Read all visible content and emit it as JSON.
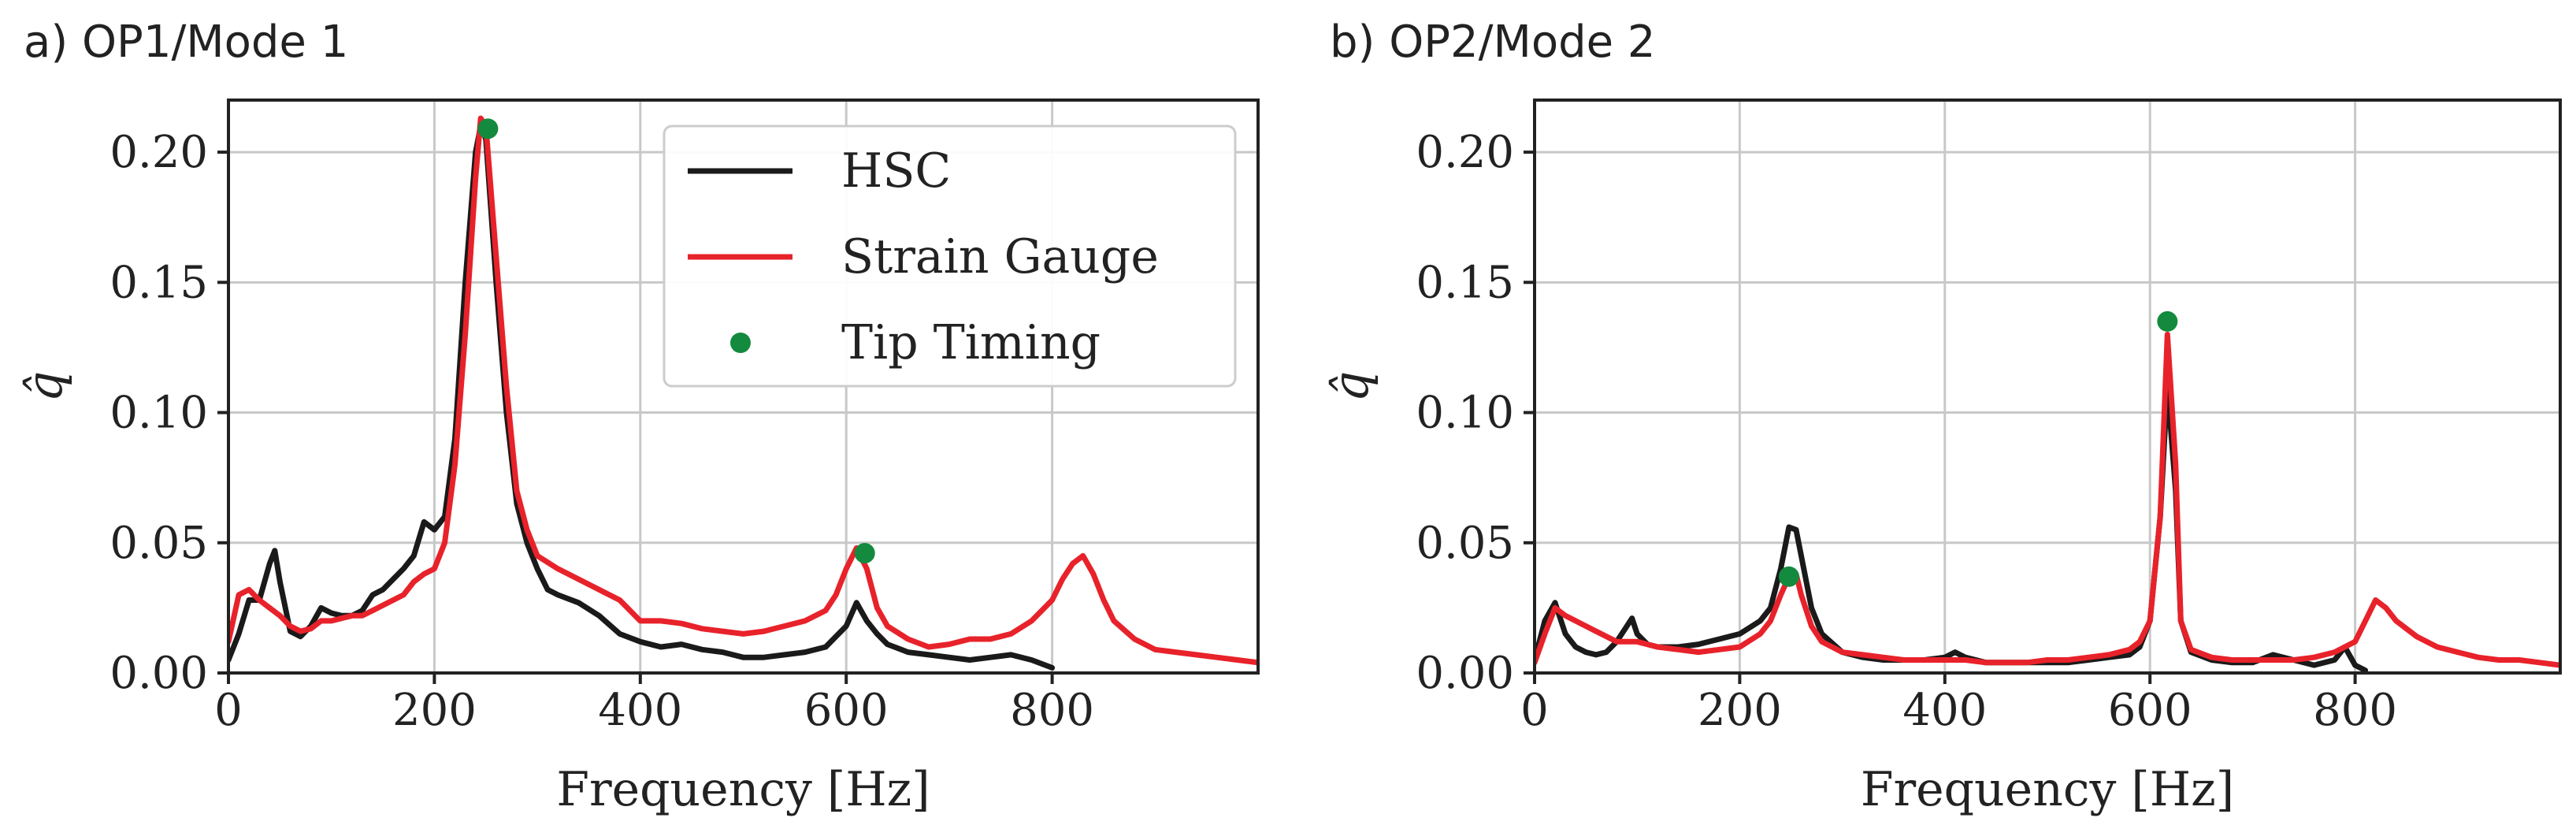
{
  "colors": {
    "hsc": "#1a1a1a",
    "strain_gauge": "#e8222a",
    "tip_timing": "#138a3e",
    "grid": "#c8c8c8",
    "axis": "#222222"
  },
  "chart_data": [
    {
      "panel": "a",
      "type": "line",
      "title": "a) OP1/Mode 1",
      "xlabel": "Frequency [Hz]",
      "ylabel": "q̂",
      "xlim": [
        0,
        1000
      ],
      "ylim": [
        0,
        0.22
      ],
      "xticks": [
        0,
        200,
        400,
        600,
        800
      ],
      "xtick_labels": [
        "0",
        "200",
        "400",
        "600",
        "800"
      ],
      "yticks": [
        0.0,
        0.05,
        0.1,
        0.15,
        0.2
      ],
      "ytick_labels": [
        "0.00",
        "0.05",
        "0.10",
        "0.15",
        "0.20"
      ],
      "grid": true,
      "legend": {
        "placement": "top-right",
        "entries": [
          "HSC",
          "Strain Gauge",
          "Tip Timing"
        ]
      },
      "series": [
        {
          "name": "HSC",
          "kind": "line",
          "x": [
            0,
            10,
            20,
            30,
            40,
            45,
            50,
            60,
            70,
            80,
            90,
            100,
            110,
            120,
            130,
            140,
            150,
            160,
            170,
            180,
            190,
            200,
            210,
            220,
            230,
            240,
            245,
            250,
            260,
            270,
            280,
            290,
            300,
            310,
            320,
            340,
            360,
            380,
            400,
            420,
            440,
            460,
            480,
            500,
            520,
            540,
            560,
            580,
            600,
            610,
            620,
            630,
            640,
            660,
            680,
            700,
            720,
            740,
            760,
            780,
            800
          ],
          "y": [
            0.005,
            0.015,
            0.028,
            0.028,
            0.042,
            0.047,
            0.035,
            0.016,
            0.014,
            0.018,
            0.025,
            0.023,
            0.022,
            0.022,
            0.024,
            0.03,
            0.032,
            0.036,
            0.04,
            0.045,
            0.058,
            0.055,
            0.06,
            0.09,
            0.15,
            0.2,
            0.21,
            0.205,
            0.15,
            0.1,
            0.065,
            0.05,
            0.04,
            0.032,
            0.03,
            0.027,
            0.022,
            0.015,
            0.012,
            0.01,
            0.011,
            0.009,
            0.008,
            0.006,
            0.006,
            0.007,
            0.008,
            0.01,
            0.018,
            0.027,
            0.02,
            0.015,
            0.011,
            0.008,
            0.007,
            0.006,
            0.005,
            0.006,
            0.007,
            0.005,
            0.002
          ]
        },
        {
          "name": "Strain Gauge",
          "kind": "line",
          "x": [
            0,
            10,
            20,
            30,
            40,
            50,
            60,
            70,
            80,
            90,
            100,
            110,
            120,
            130,
            140,
            150,
            160,
            170,
            180,
            190,
            200,
            210,
            220,
            230,
            240,
            245,
            250,
            260,
            270,
            280,
            290,
            300,
            320,
            340,
            360,
            380,
            400,
            420,
            440,
            460,
            480,
            500,
            520,
            540,
            560,
            580,
            590,
            600,
            610,
            620,
            630,
            640,
            660,
            680,
            700,
            720,
            740,
            760,
            780,
            800,
            810,
            820,
            830,
            840,
            850,
            860,
            880,
            900,
            920,
            940,
            960,
            980,
            1000
          ],
          "y": [
            0.012,
            0.03,
            0.032,
            0.028,
            0.025,
            0.022,
            0.018,
            0.016,
            0.017,
            0.02,
            0.02,
            0.021,
            0.022,
            0.022,
            0.024,
            0.026,
            0.028,
            0.03,
            0.035,
            0.038,
            0.04,
            0.05,
            0.08,
            0.13,
            0.19,
            0.213,
            0.21,
            0.16,
            0.11,
            0.07,
            0.055,
            0.045,
            0.04,
            0.036,
            0.032,
            0.028,
            0.02,
            0.02,
            0.019,
            0.017,
            0.016,
            0.015,
            0.016,
            0.018,
            0.02,
            0.024,
            0.03,
            0.04,
            0.048,
            0.04,
            0.025,
            0.018,
            0.013,
            0.01,
            0.011,
            0.013,
            0.013,
            0.015,
            0.02,
            0.028,
            0.036,
            0.042,
            0.045,
            0.038,
            0.028,
            0.02,
            0.013,
            0.009,
            0.008,
            0.007,
            0.006,
            0.005,
            0.004
          ]
        },
        {
          "name": "Tip Timing",
          "kind": "scatter",
          "x": [
            252,
            618
          ],
          "y": [
            0.209,
            0.046
          ]
        }
      ]
    },
    {
      "panel": "b",
      "type": "line",
      "title": "b) OP2/Mode 2",
      "xlabel": "Frequency [Hz]",
      "ylabel": "q̂",
      "xlim": [
        0,
        1000
      ],
      "ylim": [
        0,
        0.22
      ],
      "xticks": [
        0,
        200,
        400,
        600,
        800
      ],
      "xtick_labels": [
        "0",
        "200",
        "400",
        "600",
        "800"
      ],
      "yticks": [
        0.0,
        0.05,
        0.1,
        0.15,
        0.2
      ],
      "ytick_labels": [
        "0.00",
        "0.05",
        "0.10",
        "0.15",
        "0.20"
      ],
      "grid": true,
      "legend": null,
      "series": [
        {
          "name": "HSC",
          "kind": "line",
          "x": [
            0,
            10,
            20,
            30,
            40,
            50,
            60,
            70,
            80,
            90,
            95,
            100,
            110,
            120,
            140,
            160,
            180,
            200,
            220,
            230,
            240,
            248,
            255,
            260,
            270,
            280,
            300,
            320,
            340,
            360,
            380,
            400,
            410,
            420,
            440,
            460,
            480,
            500,
            520,
            540,
            560,
            580,
            590,
            600,
            610,
            617,
            625,
            630,
            640,
            660,
            680,
            700,
            720,
            740,
            760,
            780,
            790,
            800,
            810
          ],
          "y": [
            0.005,
            0.02,
            0.027,
            0.015,
            0.01,
            0.008,
            0.007,
            0.008,
            0.012,
            0.018,
            0.021,
            0.015,
            0.011,
            0.01,
            0.01,
            0.011,
            0.013,
            0.015,
            0.02,
            0.025,
            0.04,
            0.056,
            0.055,
            0.045,
            0.025,
            0.015,
            0.008,
            0.006,
            0.005,
            0.005,
            0.005,
            0.006,
            0.008,
            0.006,
            0.004,
            0.004,
            0.004,
            0.004,
            0.004,
            0.005,
            0.006,
            0.007,
            0.01,
            0.02,
            0.06,
            0.11,
            0.07,
            0.02,
            0.008,
            0.005,
            0.004,
            0.004,
            0.007,
            0.005,
            0.003,
            0.005,
            0.01,
            0.003,
            0.001
          ]
        },
        {
          "name": "Strain Gauge",
          "kind": "line",
          "x": [
            0,
            10,
            20,
            30,
            40,
            60,
            80,
            100,
            120,
            140,
            160,
            180,
            200,
            220,
            230,
            240,
            248,
            255,
            260,
            270,
            280,
            300,
            320,
            340,
            360,
            380,
            400,
            420,
            440,
            460,
            480,
            500,
            520,
            540,
            560,
            580,
            590,
            600,
            610,
            617,
            625,
            630,
            640,
            660,
            680,
            700,
            720,
            740,
            760,
            780,
            800,
            810,
            820,
            830,
            840,
            860,
            880,
            900,
            920,
            940,
            960,
            980,
            1000
          ],
          "y": [
            0.004,
            0.015,
            0.025,
            0.022,
            0.02,
            0.016,
            0.012,
            0.012,
            0.01,
            0.009,
            0.008,
            0.009,
            0.01,
            0.015,
            0.02,
            0.03,
            0.037,
            0.038,
            0.03,
            0.018,
            0.012,
            0.008,
            0.007,
            0.006,
            0.005,
            0.005,
            0.005,
            0.005,
            0.004,
            0.004,
            0.004,
            0.005,
            0.005,
            0.006,
            0.007,
            0.009,
            0.012,
            0.02,
            0.06,
            0.13,
            0.08,
            0.02,
            0.009,
            0.006,
            0.005,
            0.005,
            0.005,
            0.005,
            0.006,
            0.008,
            0.012,
            0.02,
            0.028,
            0.025,
            0.02,
            0.014,
            0.01,
            0.008,
            0.006,
            0.005,
            0.005,
            0.004,
            0.003
          ]
        },
        {
          "name": "Tip Timing",
          "kind": "scatter",
          "x": [
            248,
            617
          ],
          "y": [
            0.037,
            0.135
          ]
        }
      ]
    }
  ]
}
